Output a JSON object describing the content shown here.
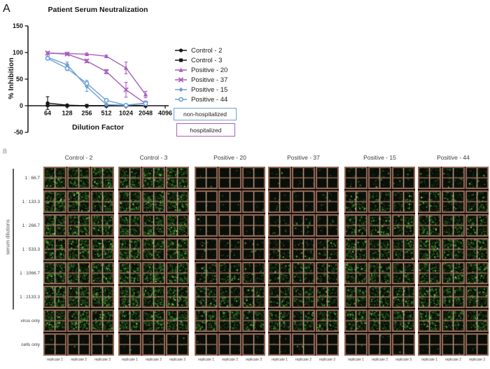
{
  "panel_a": {
    "label": "A",
    "boxes": [
      {
        "label": "non-hospitalized",
        "border_color": "#6ea0d7"
      },
      {
        "label": "hospitalized",
        "border_color": "#a85fbd"
      }
    ]
  },
  "chart_data": {
    "type": "line",
    "title": "Patient Serum Neutralization",
    "xlabel": "Dilution Factor",
    "ylabel": "% Inhibition",
    "x_scale": "log2",
    "x": [
      64,
      128,
      256,
      512,
      1024,
      2048
    ],
    "x_ticks": [
      64,
      128,
      256,
      512,
      1024,
      2048,
      4096
    ],
    "y_ticks": [
      -50,
      0,
      50,
      100,
      150
    ],
    "ylim": [
      -50,
      150
    ],
    "grid": false,
    "legend_position": "right",
    "series": [
      {
        "name": "Control - 2",
        "color": "#161616",
        "marker": "circle-filled",
        "values": [
          5,
          1,
          0,
          0,
          0,
          0
        ],
        "errors": [
          12,
          1,
          0,
          0,
          0,
          0
        ]
      },
      {
        "name": "Control - 3",
        "color": "#161616",
        "marker": "square-filled",
        "values": [
          1,
          0,
          0,
          0,
          0,
          0
        ],
        "errors": [
          2,
          0,
          0,
          0,
          0,
          0
        ]
      },
      {
        "name": "Positive - 20",
        "color": "#a85fbd",
        "marker": "triangle-filled",
        "values": [
          99,
          98,
          97,
          93,
          71,
          21
        ],
        "errors": [
          2,
          2,
          2,
          2,
          11,
          6
        ]
      },
      {
        "name": "Positive - 37",
        "color": "#a85fbd",
        "marker": "x-cross",
        "values": [
          99,
          97,
          84,
          64,
          30,
          4
        ],
        "errors": [
          2,
          2,
          3,
          4,
          14,
          2
        ]
      },
      {
        "name": "Positive - 15",
        "color": "#6ea0d7",
        "marker": "diamond-filled",
        "values": [
          91,
          77,
          36,
          2,
          1,
          5
        ],
        "errors": [
          2,
          5,
          9,
          2,
          2,
          4
        ]
      },
      {
        "name": "Positive - 44",
        "color": "#6ea0d7",
        "marker": "circle-open",
        "values": [
          89,
          70,
          42,
          10,
          1,
          4
        ],
        "errors": [
          3,
          4,
          6,
          3,
          2,
          3
        ]
      }
    ]
  },
  "panel_b": {
    "label": "B",
    "side_label": "serum dilutions",
    "row_labels": [
      "1 : 66.7",
      "1 : 133.3",
      "1 : 266.7",
      "1 : 533.3",
      "1 : 1066.7",
      "1 : 2133.3",
      "virus only",
      "cells only"
    ],
    "groups": [
      "Control - 2",
      "Control - 3",
      "Positive - 20",
      "Positive - 37",
      "Positive - 15",
      "Positive - 44"
    ],
    "replicate_labels": [
      "replicate 1",
      "replicate 2",
      "replicate 3"
    ],
    "densities": [
      [
        0.72,
        0.72,
        0.72,
        0.72,
        0.72,
        0.72,
        0.72,
        0.02
      ],
      [
        0.72,
        0.72,
        0.72,
        0.72,
        0.72,
        0.72,
        0.72,
        0.02
      ],
      [
        0.02,
        0.02,
        0.04,
        0.1,
        0.3,
        0.4,
        0.52,
        0.02
      ],
      [
        0.03,
        0.05,
        0.1,
        0.22,
        0.38,
        0.46,
        0.52,
        0.02
      ],
      [
        0.1,
        0.3,
        0.45,
        0.5,
        0.55,
        0.55,
        0.58,
        0.02
      ],
      [
        0.15,
        0.35,
        0.5,
        0.55,
        0.6,
        0.6,
        0.58,
        0.02
      ]
    ],
    "colors": {
      "tile_bg": "#0a0e09",
      "frame": "#966955",
      "cross_v": "#d7af96",
      "cross_h": "#b48269",
      "speckles": [
        "#16300f",
        "#1e4a17",
        "#2a6a20",
        "#3c8f2d",
        "#55b83e",
        "#79d95f"
      ]
    }
  }
}
